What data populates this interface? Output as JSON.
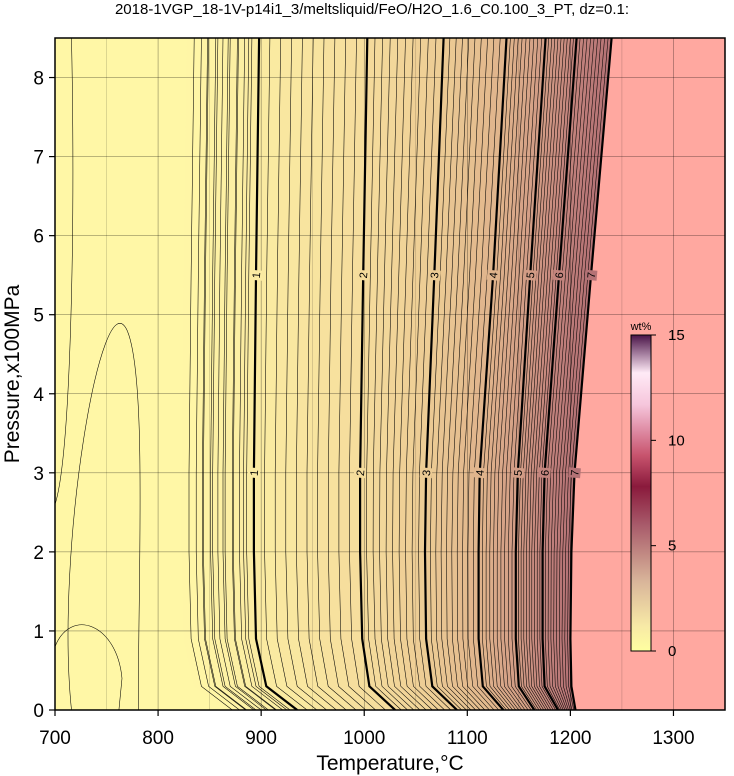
{
  "chart_data": {
    "type": "contour",
    "title": "2018-1VGP_18-1V-p14i1_3/meltsliquid/FeO/H2O_1.6_C0.100_3_PT, dz=0.1:",
    "xlabel": "Temperature,°C",
    "ylabel": "Pressure,x100MPa",
    "xlim": [
      700,
      1350
    ],
    "ylim": [
      0,
      8.5
    ],
    "xticks": [
      700,
      800,
      900,
      1000,
      1100,
      1200,
      1300
    ],
    "yticks": [
      0,
      1,
      2,
      3,
      4,
      5,
      6,
      7,
      8
    ],
    "grid": true,
    "contour_interval": 0.1,
    "labeled_contours": [
      {
        "label": "1",
        "points": [
          [
            935,
            0
          ],
          [
            905,
            0.3
          ],
          [
            895,
            0.9
          ],
          [
            893,
            2.0
          ],
          [
            893,
            3.0
          ],
          [
            895,
            5.5
          ],
          [
            898,
            8.5
          ]
        ]
      },
      {
        "label": "2",
        "points": [
          [
            1030,
            0
          ],
          [
            1005,
            0.3
          ],
          [
            998,
            0.9
          ],
          [
            996,
            2.0
          ],
          [
            996,
            3.0
          ],
          [
            999,
            5.5
          ],
          [
            1003,
            8.5
          ]
        ]
      },
      {
        "label": "3",
        "points": [
          [
            1090,
            0
          ],
          [
            1066,
            0.3
          ],
          [
            1060,
            0.9
          ],
          [
            1059,
            2.0
          ],
          [
            1060,
            3.0
          ],
          [
            1068,
            5.5
          ],
          [
            1077,
            8.5
          ]
        ]
      },
      {
        "label": "4",
        "points": [
          [
            1135,
            0
          ],
          [
            1115,
            0.3
          ],
          [
            1111,
            0.9
          ],
          [
            1111,
            2.0
          ],
          [
            1112,
            3.0
          ],
          [
            1125,
            5.5
          ],
          [
            1138,
            8.5
          ]
        ]
      },
      {
        "label": "5",
        "points": [
          [
            1165,
            0
          ],
          [
            1150,
            0.3
          ],
          [
            1147,
            0.9
          ],
          [
            1147,
            2.0
          ],
          [
            1149,
            3.0
          ],
          [
            1161,
            5.5
          ],
          [
            1176,
            8.5
          ]
        ]
      },
      {
        "label": "6",
        "points": [
          [
            1188,
            0
          ],
          [
            1175,
            0.3
          ],
          [
            1173,
            0.9
          ],
          [
            1173,
            2.0
          ],
          [
            1175,
            3.0
          ],
          [
            1189,
            5.5
          ],
          [
            1206,
            8.5
          ]
        ]
      },
      {
        "label": "7",
        "points": [
          [
            1205,
            0
          ],
          [
            1201,
            0.3
          ],
          [
            1200,
            0.9
          ],
          [
            1201,
            2.0
          ],
          [
            1204,
            3.0
          ],
          [
            1220,
            5.5
          ],
          [
            1240,
            8.5
          ]
        ]
      }
    ],
    "colorbar": {
      "unit": "wt%",
      "range": [
        0,
        15
      ],
      "ticks": [
        "0",
        "5",
        "10",
        "15"
      ]
    }
  }
}
